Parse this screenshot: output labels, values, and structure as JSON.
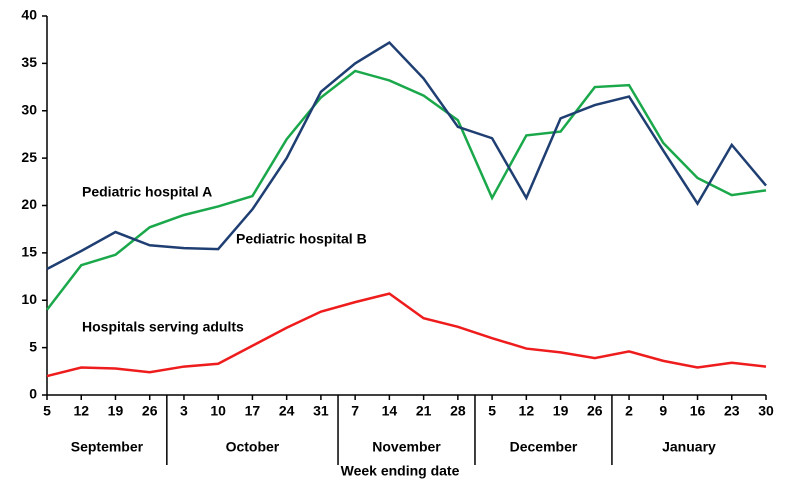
{
  "chart_data": {
    "type": "line",
    "x_label": "Week ending date",
    "categories": [
      "5",
      "12",
      "19",
      "26",
      "3",
      "10",
      "17",
      "24",
      "31",
      "7",
      "14",
      "21",
      "28",
      "5",
      "12",
      "19",
      "26",
      "2",
      "9",
      "16",
      "23",
      "30"
    ],
    "months": [
      {
        "label": "September",
        "count": 4
      },
      {
        "label": "October",
        "count": 5
      },
      {
        "label": "November",
        "count": 4
      },
      {
        "label": "December",
        "count": 4
      },
      {
        "label": "January",
        "count": 5
      }
    ],
    "series": [
      {
        "name": "Pediatric hospital A",
        "color": "#1aa84b",
        "values": [
          9,
          13.7,
          14.8,
          17.7,
          19,
          19.9,
          21,
          27,
          31.4,
          34.2,
          33.2,
          31.6,
          29,
          20.8,
          27.4,
          27.8,
          32.5,
          32.7,
          26.6,
          22.9,
          21.1,
          21.6
        ]
      },
      {
        "name": "Pediatric hospital B",
        "color": "#1f3f73",
        "values": [
          13.3,
          15.2,
          17.2,
          15.8,
          15.5,
          15.4,
          19.6,
          25,
          32,
          35,
          37.2,
          33.4,
          28.3,
          27.1,
          20.8,
          29.2,
          30.6,
          31.5,
          25.8,
          20.2,
          26.4,
          22.1
        ]
      },
      {
        "name": "Hospitals serving adults",
        "color": "#ee1c1c",
        "values": [
          2,
          2.9,
          2.8,
          2.4,
          3,
          3.3,
          5.2,
          7.1,
          8.8,
          9.8,
          10.7,
          8.1,
          7.2,
          6,
          4.9,
          4.5,
          3.9,
          4.6,
          3.6,
          2.9,
          3.4,
          3.0
        ]
      }
    ],
    "ylim": [
      0,
      40
    ],
    "yticks": [
      0,
      5,
      10,
      15,
      20,
      25,
      30,
      35,
      40
    ],
    "grid": false
  }
}
